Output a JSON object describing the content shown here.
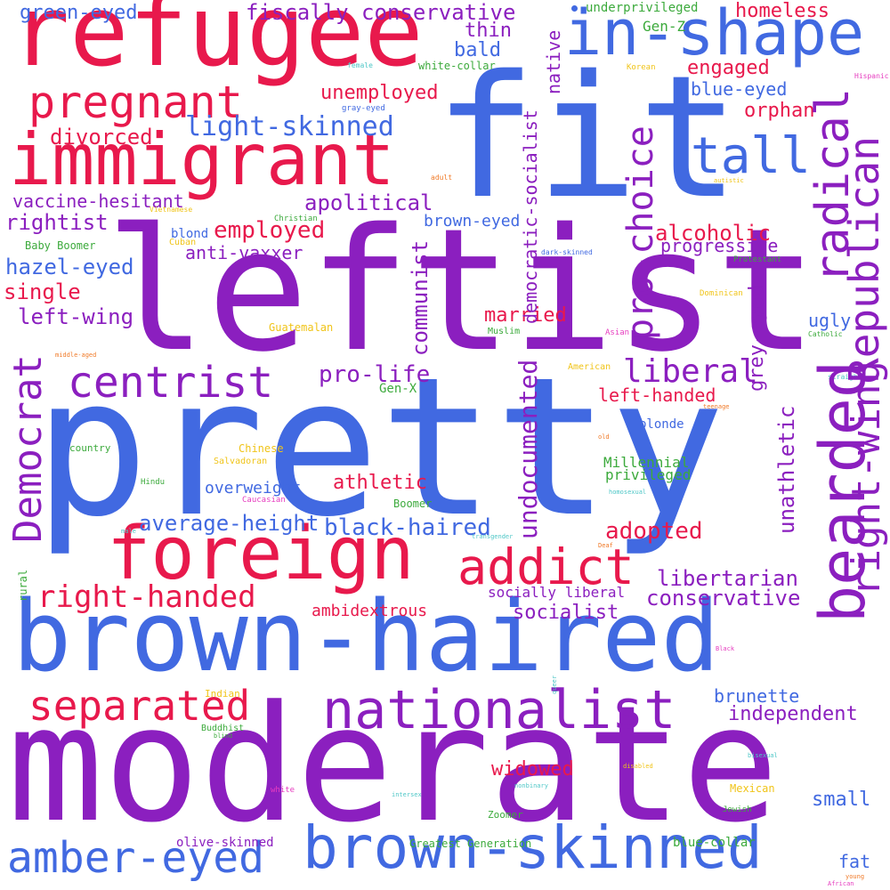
{
  "colors": {
    "blue": "#4169e1",
    "purple": "#8b1fbf",
    "red": "#e8194c",
    "green": "#3caa3c",
    "yellow": "#f0c419",
    "pink": "#e63cbf",
    "orange": "#f07a28",
    "teal": "#4fc7c7"
  },
  "words": {
    "moderate": "moderate",
    "pretty": "pretty",
    "leftist": "leftist",
    "fit": "fit",
    "brown_haired": "brown-haired",
    "refugee": "refugee",
    "immigrant": "immigrant",
    "in_shape": "in-shape",
    "foreign": "foreign",
    "brown_skinned": "brown-skinned",
    "nationalist": "nationalist",
    "amber_eyed": "amber-eyed",
    "pregnant": "pregnant",
    "centrist": "centrist",
    "addict": "addict",
    "separated": "separated",
    "right_handed": "right-handed",
    "tall": "tall",
    "bearded": "bearded",
    "radical": "radical",
    "republican": "Republican",
    "right_wing": "right-wing",
    "democrat": "Democrat",
    "light_skinned": "light-skinned",
    "pro_choice": "pro-choice",
    "fiscally_conservative": "fiscally conservative",
    "green_eyed": "green-eyed",
    "homeless": "homeless",
    "thin": "thin",
    "bald": "bald",
    "engaged": "engaged",
    "unemployed": "unemployed",
    "blue_eyed": "blue-eyed",
    "orphan": "orphan",
    "divorced": "divorced",
    "vaccine_hesitant": "vaccine-hesitant",
    "apolitical": "apolitical",
    "rightist": "rightist",
    "employed": "employed",
    "brown_eyed": "brown-eyed",
    "alcoholic": "alcoholic",
    "progressive": "progressive",
    "hazel_eyed": "hazel-eyed",
    "anti_vaxxer": "anti-vaxxer",
    "single": "single",
    "left_wing": "left-wing",
    "married": "married",
    "liberal": "liberal",
    "pro_life": "pro-life",
    "left_handed": "left-handed",
    "grey_eyed": "grey-eyed",
    "ugly": "ugly",
    "unathletic": "unathletic",
    "athletic": "athletic",
    "overweight": "overweight",
    "average_height": "average-height",
    "black_haired": "black-haired",
    "adopted": "adopted",
    "libertarian": "libertarian",
    "conservative": "conservative",
    "ambidextrous": "ambidextrous",
    "socialist": "socialist",
    "socially_liberal": "socially liberal",
    "brunette": "brunette",
    "independent": "independent",
    "widowed": "widowed",
    "small": "small",
    "fat": "fat",
    "olive_skinned": "olive-skinned",
    "blue_collar": "blue-collar",
    "millennial": "Millennial",
    "privileged": "privileged",
    "blonde": "blonde",
    "blond": "blond",
    "undocumented": "undocumented",
    "communist": "communist",
    "democratic_socialist": "democratic-socialist",
    "native": "native",
    "underprivileged": "underprivileged",
    "gen_z": "Gen-Z",
    "white_collar": "white-collar",
    "gen_x": "Gen-X",
    "boomer": "Boomer",
    "baby_boomer": "Baby Boomer",
    "greatest_generation": "Greatest Generation",
    "zoomer": "Zoomer",
    "country": "country",
    "rural": "rural",
    "muslim": "Muslim",
    "buddhist": "Buddhist",
    "hindu": "Hindu",
    "jewish": "Jewish",
    "christian": "Christian",
    "catholic": "Catholic",
    "protestant": "Protestant",
    "korean": "Korean",
    "guatemalan": "Guatemalan",
    "american": "American",
    "chinese": "Chinese",
    "salvadoran": "Salvadoran",
    "indian": "Indian",
    "mexican": "Mexican",
    "cuban": "Cuban",
    "vietnamese": "Vietnamese",
    "dominican": "Dominican",
    "caucasian": "Caucasian",
    "white": "white",
    "asian": "Asian",
    "hispanic": "Hispanic",
    "black": "Black",
    "african": "African",
    "gray_eyed": "gray-eyed",
    "female": "female",
    "male": "male",
    "adult": "adult",
    "autistic": "autistic",
    "dark_skinned": "dark-skinned",
    "middle_aged": "middle-aged",
    "teenage": "teenage",
    "old": "old",
    "young": "young",
    "straight": "straight",
    "homosexual": "homosexual",
    "transgender": "transgender",
    "deaf": "Deaf",
    "disabled": "disabled",
    "nonbinary": "nonbinary",
    "blind": "blind",
    "bisexual": "bisexual",
    "intersex": "intersex",
    "queer": "queer"
  }
}
